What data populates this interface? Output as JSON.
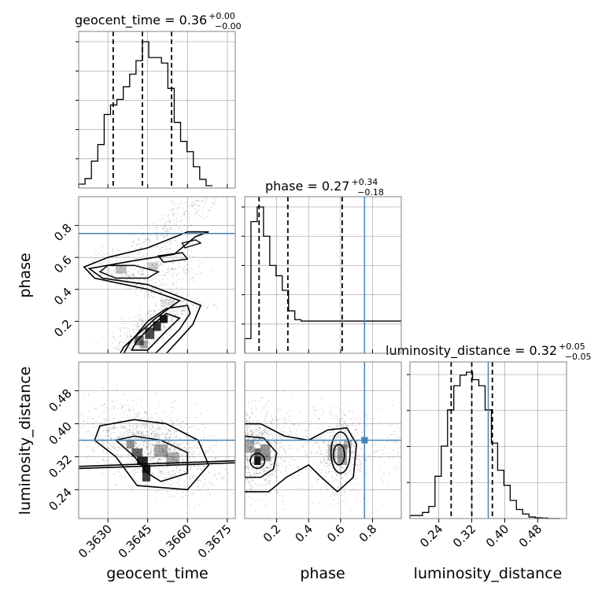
{
  "chart_data": {
    "type": "corner",
    "colors": {
      "truth": "#4682b4",
      "hist": "#000000",
      "grid": "#b0b0b0",
      "points": "#000000"
    },
    "parameters": [
      "geocent_time",
      "phase",
      "luminosity_distance"
    ],
    "axis_labels": {
      "x": [
        "geocent_time",
        "phase",
        "luminosity_distance"
      ],
      "y": [
        "phase",
        "luminosity_distance"
      ]
    },
    "titles": [
      {
        "text": "geocent_time = 0.36",
        "sup": "+0.00",
        "sub": "−0.00"
      },
      {
        "text": "phase = 0.27",
        "sup": "+0.34",
        "sub": "−0.18"
      },
      {
        "text": "luminosity_distance = 0.32",
        "sup": "+0.05",
        "sub": "−0.05"
      }
    ],
    "ranges": {
      "geocent_time": [
        0.3619,
        0.3678
      ],
      "phase": [
        0.0,
        0.98
      ],
      "luminosity_distance": [
        0.17,
        0.55
      ]
    },
    "ticks": {
      "geocent_time": {
        "values": [
          0.363,
          0.3645,
          0.366,
          0.3675
        ],
        "labels": [
          "0.3630",
          "0.3645",
          "0.3660",
          "0.3675"
        ]
      },
      "phase_x": {
        "values": [
          0.2,
          0.4,
          0.6,
          0.8
        ],
        "labels": [
          "0.2",
          "0.4",
          "0.6",
          "0.8"
        ]
      },
      "phase_y": {
        "values": [
          0.2,
          0.4,
          0.6,
          0.8
        ],
        "labels": [
          "0.2",
          "0.4",
          "0.6",
          "0.8"
        ]
      },
      "luminosity_distance_y": {
        "values": [
          0.24,
          0.32,
          0.4,
          0.48
        ],
        "labels": [
          "0.24",
          "0.32",
          "0.40",
          "0.48"
        ]
      },
      "luminosity_distance_x": {
        "values": [
          0.24,
          0.32,
          0.4,
          0.48
        ],
        "labels": [
          "0.24",
          "0.32",
          "0.40",
          "0.48"
        ]
      }
    },
    "truths": {
      "phase": 0.75,
      "luminosity_distance": 0.36
    },
    "histograms": {
      "geocent_time": {
        "bins": [
          0.3619,
          0.36214,
          0.36238,
          0.36262,
          0.36286,
          0.3631,
          0.36334,
          0.36358,
          0.36382,
          0.36406,
          0.3643,
          0.36454,
          0.36478,
          0.36502,
          0.36526,
          0.3655,
          0.36574,
          0.36598,
          0.36622,
          0.36646,
          0.3667,
          0.36694
        ],
        "counts": [
          0.5,
          1.2,
          3.4,
          5.5,
          9.3,
          10.5,
          11.2,
          12.8,
          14.4,
          16.1,
          18.5,
          16.5,
          16.5,
          15.8,
          12.6,
          8.3,
          5.9,
          4.6,
          2.7,
          1.1,
          0.3
        ],
        "quantiles": [
          0.3632,
          0.3643,
          0.3654
        ]
      },
      "phase": {
        "bins": [
          0.0,
          0.0392,
          0.0784,
          0.1176,
          0.1568,
          0.196,
          0.2352,
          0.2744,
          0.3136,
          0.3528,
          0.392,
          0.4312,
          0.4704,
          0.5096,
          0.5488,
          0.588,
          0.6272,
          0.6664,
          0.7056,
          0.7448,
          0.784,
          0.8232,
          0.8624,
          0.9016,
          0.9408,
          0.98
        ],
        "counts": [
          0.1,
          0.9,
          1.0,
          0.8,
          0.6,
          0.53,
          0.43,
          0.29,
          0.23,
          0.22,
          0.22,
          0.22,
          0.22,
          0.22,
          0.22,
          0.22,
          0.22,
          0.22,
          0.22,
          0.22,
          0.22,
          0.22,
          0.22,
          0.22,
          0.22
        ],
        "quantiles": [
          0.09,
          0.27,
          0.61
        ]
      },
      "luminosity_distance": {
        "bins": [
          0.17,
          0.1852,
          0.2004,
          0.2156,
          0.2308,
          0.246,
          0.2612,
          0.2764,
          0.2916,
          0.3068,
          0.322,
          0.3372,
          0.3524,
          0.3676,
          0.3828,
          0.398,
          0.4132,
          0.4284,
          0.4436,
          0.4588,
          0.474,
          0.4892,
          0.5044,
          0.5196,
          0.5348
        ],
        "counts": [
          0.02,
          0.02,
          0.04,
          0.08,
          0.28,
          0.48,
          0.72,
          0.88,
          0.95,
          0.97,
          0.92,
          0.88,
          0.72,
          0.5,
          0.32,
          0.22,
          0.12,
          0.06,
          0.03,
          0.01,
          0.005,
          0.003,
          0.0,
          0.0
        ],
        "quantiles": [
          0.27,
          0.32,
          0.37
        ]
      }
    }
  }
}
